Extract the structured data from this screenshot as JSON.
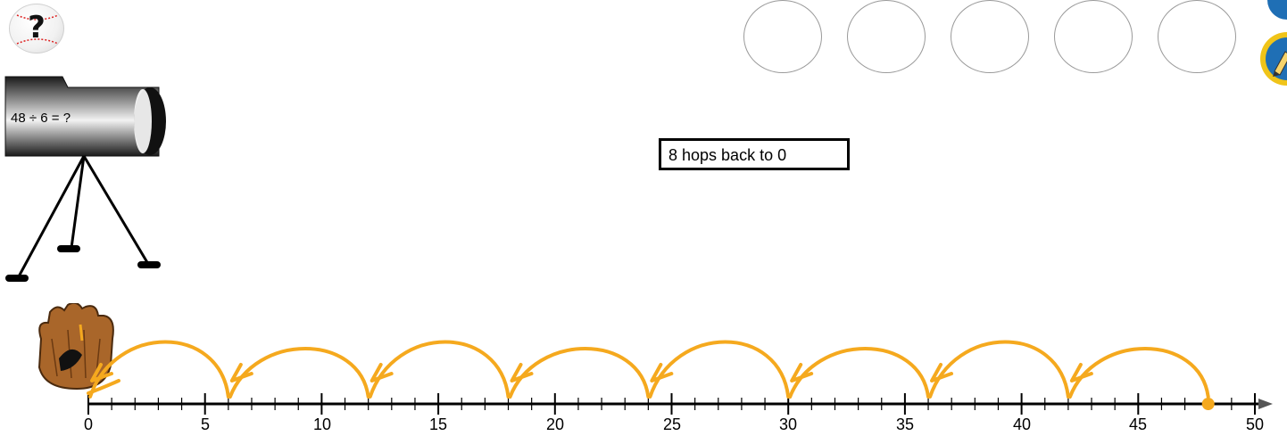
{
  "help": {
    "label": "?"
  },
  "answer_slots": {
    "count": 5
  },
  "hint": {
    "text": "8 hops back to 0"
  },
  "problem": {
    "equation": "48 ÷ 6 = ?"
  },
  "number_line": {
    "min": 0,
    "max": 50,
    "major_step": 5,
    "minor_step": 1,
    "tick_labels": [
      "0",
      "5",
      "10",
      "15",
      "20",
      "25",
      "30",
      "35",
      "40",
      "45",
      "50"
    ],
    "start_point": 48
  },
  "hops": {
    "count": 8,
    "size": 6,
    "direction": "back",
    "stops": [
      48,
      42,
      36,
      30,
      24,
      18,
      12,
      6,
      0
    ],
    "color": "#f5a91e"
  },
  "colors": {
    "hop_line": "#f5a91e",
    "answer_slot_border": "#9a9a9a",
    "pencil_ring": "#f0c419",
    "pencil_button": "#1f6fb5"
  },
  "icons": {
    "help": "baseball-question-icon",
    "telescope": "telescope-icon",
    "glove": "baseball-glove-icon",
    "pencil": "pencil-icon"
  }
}
